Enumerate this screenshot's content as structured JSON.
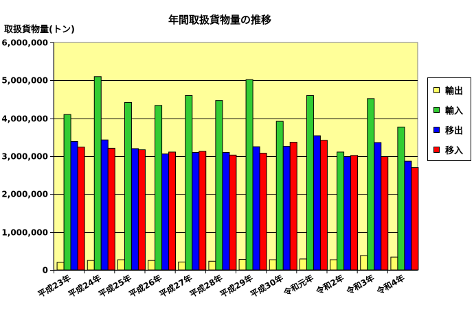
{
  "chart_data": {
    "type": "bar",
    "title": "年間取扱貨物量の推移",
    "ylabel": "取扱貨物量(トン)",
    "ylim": [
      0,
      6000000
    ],
    "yticks": [
      "0",
      "1,000,000",
      "2,000,000",
      "3,000,000",
      "4,000,000",
      "5,000,000",
      "6,000,000"
    ],
    "categories": [
      "平成23年",
      "平成24年",
      "平成25年",
      "平成26年",
      "平成27年",
      "平成28年",
      "平成29年",
      "平成30年",
      "令和元年",
      "令和2年",
      "令和3年",
      "令和4年"
    ],
    "series": [
      {
        "name": "輸出",
        "color": "#ffff66",
        "values": [
          200000,
          250000,
          270000,
          250000,
          210000,
          230000,
          280000,
          270000,
          290000,
          270000,
          380000,
          340000
        ]
      },
      {
        "name": "輸入",
        "color": "#33cc33",
        "values": [
          4100000,
          5100000,
          4420000,
          4340000,
          4600000,
          4470000,
          5020000,
          3920000,
          4600000,
          3110000,
          4520000,
          3770000
        ]
      },
      {
        "name": "移出",
        "color": "#0000ff",
        "values": [
          3390000,
          3430000,
          3200000,
          3060000,
          3100000,
          3100000,
          3250000,
          3260000,
          3540000,
          2990000,
          3360000,
          2870000
        ]
      },
      {
        "name": "移入",
        "color": "#ff0000",
        "values": [
          3240000,
          3210000,
          3170000,
          3110000,
          3130000,
          3030000,
          3080000,
          3370000,
          3420000,
          3020000,
          2990000,
          2700000
        ]
      }
    ],
    "plot_background": "#ffff99",
    "grid": true,
    "legend_position": "right"
  }
}
